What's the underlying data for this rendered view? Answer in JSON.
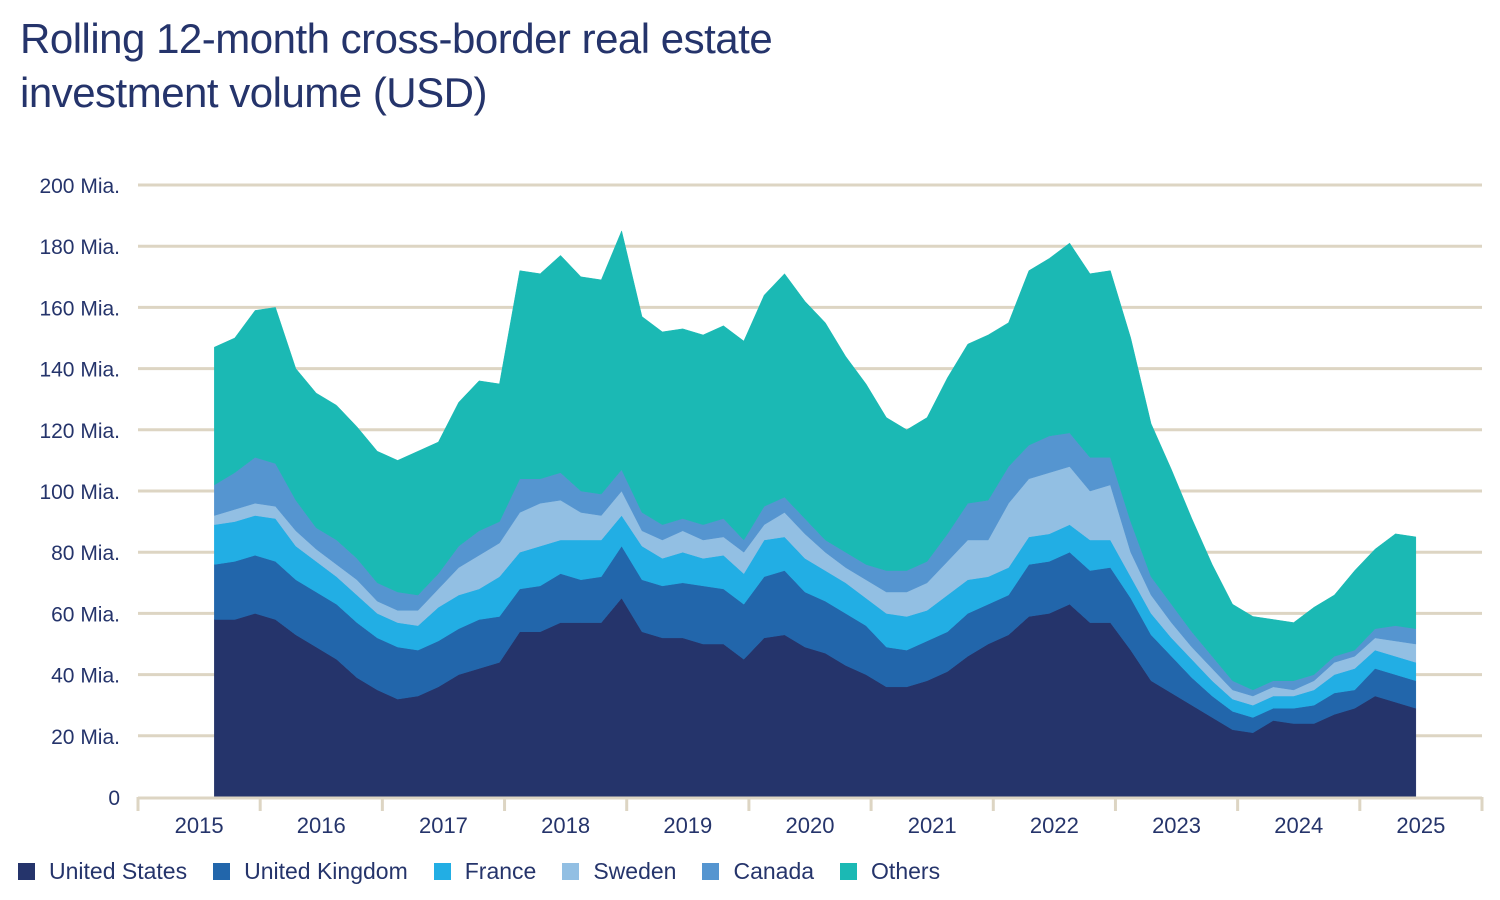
{
  "chart_data": {
    "type": "area",
    "stacked": true,
    "title": "Rolling 12-month cross-border real estate investment volume (USD)",
    "title_lines": [
      "Rolling 12-month cross-border real estate",
      "investment volume (USD)"
    ],
    "xlabel": "",
    "ylabel": "",
    "ylim": [
      0,
      200
    ],
    "y_ticks": [
      0,
      20,
      40,
      60,
      80,
      100,
      120,
      140,
      160,
      180,
      200
    ],
    "y_tick_labels": [
      "0",
      "20 Mia.",
      "40 Mia.",
      "60 Mia.",
      "80 Mia.",
      "100 Mia.",
      "120 Mia.",
      "140 Mia.",
      "160 Mia.",
      "180 Mia.",
      "200 Mia."
    ],
    "x_tick_labels": [
      "2015",
      "2016",
      "2017",
      "2018",
      "2019",
      "2020",
      "2021",
      "2022",
      "2023",
      "2024",
      "2025"
    ],
    "xlim": [
      "2015-01",
      "2025-12"
    ],
    "grid": true,
    "legend_position": "bottom-left",
    "x": [
      "2015-08",
      "2015-10",
      "2015-12",
      "2016-02",
      "2016-04",
      "2016-06",
      "2016-08",
      "2016-10",
      "2016-12",
      "2017-02",
      "2017-04",
      "2017-06",
      "2017-08",
      "2017-10",
      "2017-12",
      "2018-02",
      "2018-04",
      "2018-06",
      "2018-08",
      "2018-10",
      "2018-12",
      "2019-02",
      "2019-04",
      "2019-06",
      "2019-08",
      "2019-10",
      "2019-12",
      "2020-02",
      "2020-04",
      "2020-06",
      "2020-08",
      "2020-10",
      "2020-12",
      "2021-02",
      "2021-04",
      "2021-06",
      "2021-08",
      "2021-10",
      "2021-12",
      "2022-02",
      "2022-04",
      "2022-06",
      "2022-08",
      "2022-10",
      "2022-12",
      "2023-02",
      "2023-04",
      "2023-06",
      "2023-08",
      "2023-10",
      "2023-12",
      "2024-02",
      "2024-04",
      "2024-06",
      "2024-08",
      "2024-10",
      "2024-12",
      "2025-02",
      "2025-04",
      "2025-06"
    ],
    "series": [
      {
        "name": "United States",
        "color": "#25346b",
        "values": [
          58,
          58,
          60,
          58,
          53,
          49,
          45,
          39,
          35,
          32,
          33,
          36,
          40,
          42,
          44,
          54,
          54,
          57,
          57,
          57,
          65,
          54,
          52,
          52,
          50,
          50,
          45,
          52,
          53,
          49,
          47,
          43,
          40,
          36,
          36,
          38,
          41,
          46,
          50,
          53,
          59,
          60,
          63,
          57,
          57,
          48,
          38,
          34,
          30,
          26,
          22,
          21,
          25,
          24,
          24,
          27,
          29,
          33,
          31,
          29
        ]
      },
      {
        "name": "United Kingdom",
        "color": "#2266ab",
        "values": [
          18,
          19,
          19,
          19,
          18,
          18,
          18,
          18,
          17,
          17,
          15,
          15,
          15,
          16,
          15,
          14,
          15,
          16,
          14,
          15,
          17,
          17,
          17,
          18,
          19,
          18,
          18,
          20,
          21,
          18,
          17,
          17,
          16,
          13,
          12,
          13,
          13,
          14,
          13,
          13,
          17,
          17,
          17,
          17,
          18,
          17,
          15,
          12,
          9,
          7,
          6,
          5,
          4,
          5,
          6,
          7,
          6,
          9,
          9,
          9
        ]
      },
      {
        "name": "France",
        "color": "#22aee4",
        "values": [
          13,
          13,
          13,
          14,
          11,
          10,
          9,
          9,
          8,
          8,
          8,
          11,
          11,
          10,
          13,
          12,
          13,
          11,
          13,
          12,
          10,
          11,
          9,
          10,
          9,
          11,
          10,
          12,
          11,
          11,
          10,
          10,
          9,
          11,
          11,
          10,
          12,
          11,
          9,
          9,
          9,
          9,
          9,
          10,
          9,
          7,
          7,
          6,
          6,
          5,
          4,
          4,
          4,
          4,
          5,
          6,
          7,
          6,
          6,
          6
        ]
      },
      {
        "name": "Sweden",
        "color": "#92bfe3",
        "values": [
          3,
          4,
          4,
          4,
          5,
          4,
          4,
          5,
          4,
          4,
          5,
          6,
          9,
          11,
          11,
          13,
          14,
          13,
          9,
          8,
          8,
          5,
          6,
          7,
          6,
          6,
          7,
          5,
          8,
          8,
          6,
          5,
          6,
          7,
          8,
          9,
          11,
          13,
          12,
          21,
          19,
          20,
          19,
          16,
          18,
          8,
          6,
          5,
          4,
          4,
          3,
          3,
          3,
          2,
          3,
          4,
          4,
          4,
          5,
          6
        ]
      },
      {
        "name": "Canada",
        "color": "#5595d0",
        "values": [
          10,
          12,
          15,
          14,
          10,
          7,
          8,
          7,
          6,
          6,
          5,
          5,
          7,
          8,
          7,
          11,
          8,
          9,
          7,
          7,
          7,
          6,
          5,
          4,
          5,
          6,
          4,
          6,
          5,
          5,
          4,
          5,
          5,
          7,
          7,
          7,
          9,
          12,
          13,
          12,
          11,
          12,
          11,
          11,
          9,
          10,
          6,
          6,
          5,
          4,
          3,
          2,
          2,
          3,
          2,
          2,
          2,
          3,
          5,
          5
        ]
      },
      {
        "name": "Others",
        "color": "#1bb9b4",
        "values": [
          45,
          44,
          48,
          51,
          43,
          44,
          44,
          43,
          43,
          43,
          47,
          43,
          47,
          49,
          45,
          68,
          67,
          71,
          70,
          70,
          78,
          64,
          63,
          62,
          62,
          63,
          65,
          69,
          73,
          71,
          71,
          64,
          59,
          50,
          46,
          47,
          51,
          52,
          54,
          47,
          57,
          58,
          62,
          60,
          61,
          60,
          50,
          44,
          37,
          30,
          25,
          24,
          20,
          19,
          22,
          20,
          26,
          26,
          30,
          30
        ]
      }
    ]
  }
}
